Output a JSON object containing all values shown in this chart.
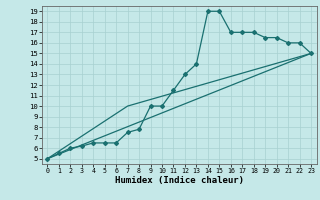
{
  "title": "",
  "xlabel": "Humidex (Indice chaleur)",
  "bg_color": "#c5e8e8",
  "line_color": "#1a7070",
  "grid_color": "#a8d0d0",
  "xlim": [
    -0.5,
    23.5
  ],
  "ylim": [
    4.5,
    19.5
  ],
  "xticks": [
    0,
    1,
    2,
    3,
    4,
    5,
    6,
    7,
    8,
    9,
    10,
    11,
    12,
    13,
    14,
    15,
    16,
    17,
    18,
    19,
    20,
    21,
    22,
    23
  ],
  "yticks": [
    5,
    6,
    7,
    8,
    9,
    10,
    11,
    12,
    13,
    14,
    15,
    16,
    17,
    18,
    19
  ],
  "curve1_x": [
    0,
    1,
    2,
    3,
    4,
    5,
    6,
    7,
    8,
    9,
    10,
    11,
    12,
    13,
    14,
    15,
    16,
    17,
    18,
    19,
    20,
    21,
    22,
    23
  ],
  "curve1_y": [
    5,
    5.5,
    6,
    6.2,
    6.5,
    6.5,
    6.5,
    7.5,
    7.8,
    10,
    10,
    11.5,
    13,
    14,
    19,
    19,
    17,
    17,
    17,
    16.5,
    16.5,
    16,
    16,
    15
  ],
  "curve2_x": [
    0,
    23
  ],
  "curve2_y": [
    5,
    15
  ],
  "curve3_x": [
    0,
    7,
    23
  ],
  "curve3_y": [
    5,
    10,
    15
  ],
  "marker": "D",
  "markersize": 2.0,
  "linewidth": 0.9,
  "xlabel_fontsize": 6.5,
  "tick_fontsize_x": 4.8,
  "tick_fontsize_y": 5.2
}
